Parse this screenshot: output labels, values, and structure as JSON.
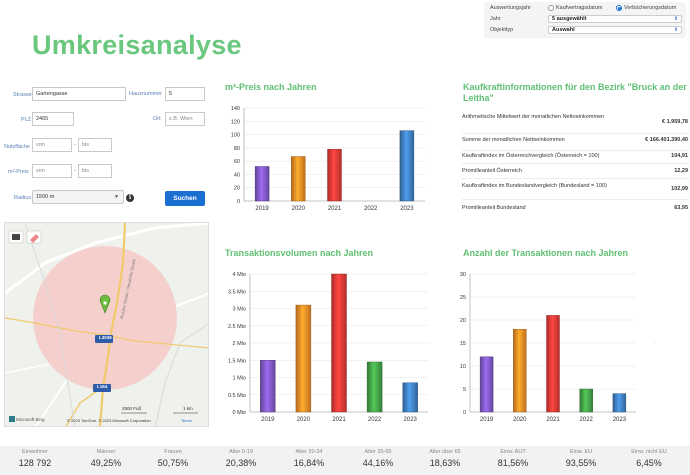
{
  "settings": {
    "label_year": "Auswertungsjahr",
    "option_contract": "Kaufvertragsdatum",
    "option_entry": "Verbücherungsdatum",
    "label_jahr": "Jahr",
    "jahr_value": "5 ausgewählt",
    "label_objekttyp": "Objekttyp",
    "objekttyp_value": "Auswahl"
  },
  "page_title": "Umkreisanalyse",
  "form": {
    "strasse_label": "Strasse",
    "strasse_value": "Gartengasse",
    "hausnummer_label": "Hausnummer",
    "hausnummer_value": "5",
    "plz_label": "PLZ",
    "plz_value": "2465",
    "ort_label": "Ort",
    "ort_placeholder": "z.B. Wien",
    "nutzflaeche_label": "Nutzfläche",
    "von_placeholder": "von",
    "bis_placeholder": "bis",
    "m2preis_label": "m²-Preis",
    "radius_label": "Radius",
    "radius_value": "1500 m",
    "search_button": "Suchen"
  },
  "map": {
    "road_label_1": "L3036",
    "road_label_2": "L164",
    "street_name": "Brucker Straße / Neudorfer Straße",
    "scale_1": "2500 Fuß",
    "scale_2": "1 km",
    "brand": "Microsoft Bing",
    "copyright": "© 2023 TomTom, © 2023 Microsoft Corporation",
    "terms": "Terms"
  },
  "kaufkraft": {
    "title": "Kaufkraftinformationen für den Bezirk \"Bruck an der Leitha\"",
    "rows": [
      {
        "label": "Arithmetische Mittelwert der monatlichen Nettoeinkommen",
        "value": "€ 1.959,78"
      },
      {
        "label": "Summe der monatlichen Nettoeinkommen",
        "value": "€ 166.401.390,40"
      },
      {
        "label": "Kaufkraftindex im Österreichvergleich (Österreich = 100)",
        "value": "104,91"
      },
      {
        "label": "Promilleanteil Österreich",
        "value": "12,29"
      },
      {
        "label": "Kaufkraftindex im Bundeslandvergleich (Bundesland = 100)",
        "value": "102,99"
      },
      {
        "label": "Promilleanteil Bundesland",
        "value": "63,95"
      }
    ]
  },
  "chart_data": [
    {
      "type": "bar",
      "title": "m²-Preis nach Jahren",
      "categories": [
        "2019",
        "2020",
        "2021",
        "2022",
        "2023"
      ],
      "values": [
        52,
        67,
        78,
        null,
        106
      ],
      "yticks": [
        "0",
        "20",
        "40",
        "60",
        "80",
        "100",
        "120",
        "140"
      ],
      "ylim": [
        0,
        140
      ],
      "colors": [
        "#7e57c2",
        "#f08a24",
        "#e53935",
        "#43a047",
        "#3f7fbf"
      ]
    },
    {
      "type": "bar",
      "title": "Transaktionsvolumen nach Jahren",
      "categories": [
        "2019",
        "2020",
        "2021",
        "2022",
        "2023"
      ],
      "values": [
        1.5,
        3.1,
        4.0,
        1.45,
        0.85
      ],
      "yticks": [
        "0 Mio",
        "0.5 Mio",
        "1 Mio",
        "1.5 Mio",
        "2 Mio",
        "2.5 Mio",
        "3 Mio",
        "3.5 Mio",
        "4 Mio"
      ],
      "ylim": [
        0,
        4
      ],
      "colors": [
        "#7e57c2",
        "#f08a24",
        "#e53935",
        "#43a047",
        "#3f7fbf"
      ]
    },
    {
      "type": "bar",
      "title": "Anzahl der Transaktionen nach Jahren",
      "categories": [
        "2019",
        "2020",
        "2021",
        "2022",
        "2023"
      ],
      "values": [
        12,
        18,
        21,
        5,
        4
      ],
      "yticks": [
        "0",
        "5",
        "10",
        "15",
        "20",
        "25",
        "30"
      ],
      "ylim": [
        0,
        30
      ],
      "colors": [
        "#7e57c2",
        "#f08a24",
        "#e53935",
        "#43a047",
        "#3f7fbf"
      ]
    }
  ],
  "stats": [
    {
      "label": "Einwohner",
      "value": "128 792"
    },
    {
      "label": "Männer",
      "value": "49,25%"
    },
    {
      "label": "Frauen",
      "value": "50,75%"
    },
    {
      "label": "Alter 0-19",
      "value": "20,38%"
    },
    {
      "label": "Alter 20-34",
      "value": "16,84%"
    },
    {
      "label": "Alter 35-65",
      "value": "44,16%"
    },
    {
      "label": "Alter über 65",
      "value": "18,63%"
    },
    {
      "label": "Einw. AUT",
      "value": "81,56%"
    },
    {
      "label": "Einw. EU",
      "value": "93,55%"
    },
    {
      "label": "Einw. nicht EU",
      "value": "6,45%"
    }
  ]
}
